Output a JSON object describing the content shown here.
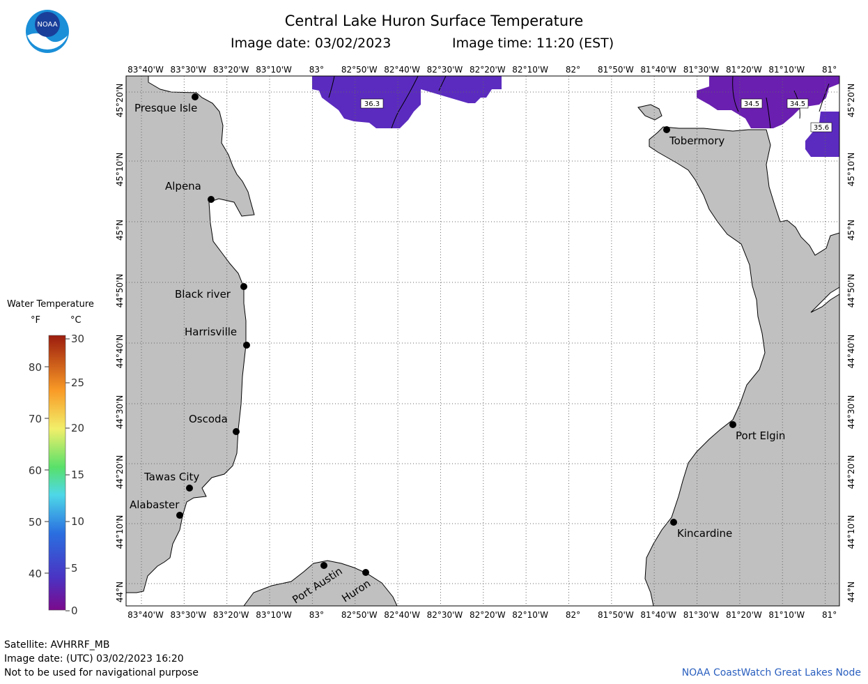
{
  "header": {
    "title": "Central Lake Huron Surface Temperature",
    "image_date": "Image date: 03/02/2023",
    "image_time": "Image time: 11:20 (EST)",
    "logo_text": "NOAA"
  },
  "axes": {
    "longitudes": [
      "83°40'W",
      "83°30'W",
      "83°20'W",
      "83°10'W",
      "83°",
      "82°50'W",
      "82°40'W",
      "82°30'W",
      "82°20'W",
      "82°10'W",
      "82°",
      "81°50'W",
      "81°40'W",
      "81°30'W",
      "81°20'W",
      "81°10'W",
      "81°"
    ],
    "latitudes": [
      "45°20'N",
      "45°10'N",
      "45°N",
      "44°50'N",
      "44°40'N",
      "44°30'N",
      "44°20'N",
      "44°10'N",
      "44°N"
    ]
  },
  "cities": [
    {
      "name": "Presque Isle"
    },
    {
      "name": "Alpena"
    },
    {
      "name": "Black river"
    },
    {
      "name": "Harrisville"
    },
    {
      "name": "Oscoda"
    },
    {
      "name": "Tawas City"
    },
    {
      "name": "Alabaster"
    },
    {
      "name": "Port Austin"
    },
    {
      "name": "Huron"
    },
    {
      "name": "Tobermory"
    },
    {
      "name": "Port Elgin"
    },
    {
      "name": "Kincardine"
    }
  ],
  "temperature_labels": [
    "36.3",
    "34.5",
    "34.5",
    "35.6"
  ],
  "legend": {
    "title": "Water Temperature",
    "unit_f": "°F",
    "unit_c": "°C",
    "f_ticks": [
      "80",
      "70",
      "60",
      "50",
      "40"
    ],
    "c_ticks": [
      "30",
      "25",
      "20",
      "15",
      "10",
      "5",
      "0"
    ]
  },
  "footer": {
    "satellite": "Satellite: AVHRRF_MB",
    "utc_date": "Image date: (UTC) 03/02/2023  16:20",
    "disclaimer": "Not to be used for navigational purpose",
    "credit": "NOAA CoastWatch Great Lakes Node"
  },
  "colors": {
    "land": "#c0c0c0",
    "water": "#ffffff",
    "sst_purple": "#5b2bbf",
    "sst_violet": "#6a1fb0",
    "credit_blue": "#2a5fbf"
  }
}
